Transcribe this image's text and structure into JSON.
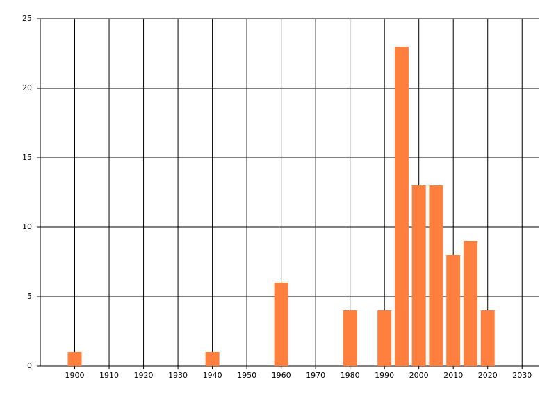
{
  "chart_data": {
    "type": "bar",
    "x": [
      1900,
      1940,
      1960,
      1980,
      1990,
      1995,
      2000,
      2005,
      2010,
      2015,
      2020
    ],
    "values": [
      1,
      1,
      6,
      4,
      4,
      23,
      13,
      13,
      8,
      9,
      4
    ],
    "color": "#ff7f3f",
    "xlim": [
      1890,
      2035
    ],
    "xticks": [
      1900,
      1910,
      1920,
      1930,
      1940,
      1950,
      1960,
      1970,
      1980,
      1990,
      2000,
      2010,
      2020,
      2030
    ],
    "ylim": [
      0,
      25
    ],
    "yticks": [
      0,
      5,
      10,
      15,
      20,
      25
    ],
    "grid": true
  }
}
